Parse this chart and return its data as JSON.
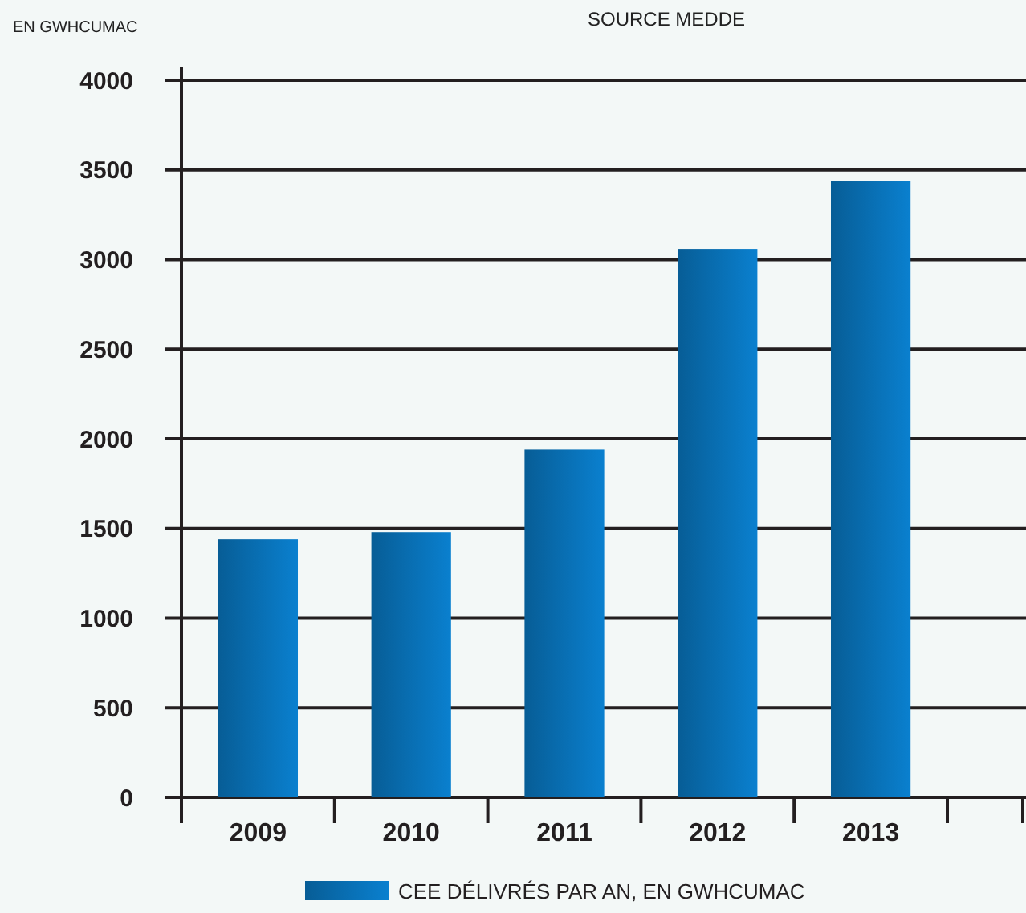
{
  "chart_data": {
    "type": "bar",
    "title": "SOURCE MEDDE",
    "ylabel": "EN GWHCUMAC",
    "categories": [
      "2009",
      "2010",
      "2011",
      "2012",
      "2013"
    ],
    "series": [
      {
        "name": "CEE DÉLIVRÉS PAR AN, EN GWHCUMAC",
        "color": "#0a80cf",
        "values": [
          1440,
          1480,
          1940,
          3060,
          3440
        ]
      }
    ],
    "ylim": [
      0,
      4000
    ],
    "yticks": [
      0,
      500,
      1000,
      1500,
      2000,
      2500,
      3000,
      3500,
      4000
    ],
    "grid": "y",
    "legend": "bottom"
  }
}
